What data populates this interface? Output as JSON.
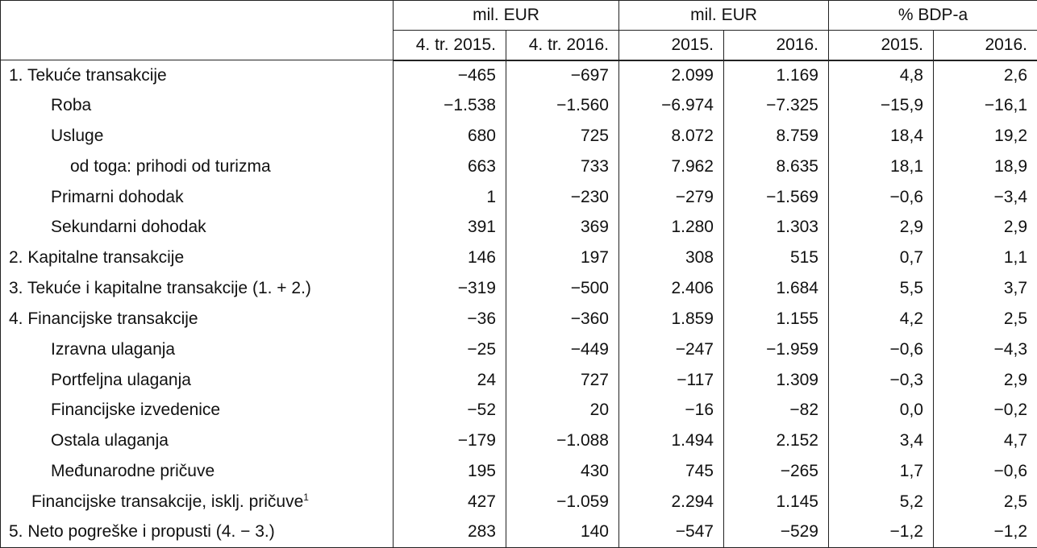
{
  "table": {
    "groups": [
      {
        "label": "mil. EUR",
        "span": 2
      },
      {
        "label": "mil. EUR",
        "span": 2
      },
      {
        "label": "% BDP-a",
        "span": 2
      }
    ],
    "columns": [
      "4. tr. 2015.",
      "4. tr. 2016.",
      "2015.",
      "2016.",
      "2015.",
      "2016."
    ],
    "rows": [
      {
        "label": "1. Tekuće transakcije",
        "bold": true,
        "indent": 0,
        "values": [
          "−465",
          "−697",
          "2.099",
          "1.169",
          "4,8",
          "2,6"
        ]
      },
      {
        "label": "Roba",
        "bold": false,
        "indent": 2,
        "values": [
          "−1.538",
          "−1.560",
          "−6.974",
          "−7.325",
          "−15,9",
          "−16,1"
        ]
      },
      {
        "label": "Usluge",
        "bold": false,
        "indent": 2,
        "values": [
          "680",
          "725",
          "8.072",
          "8.759",
          "18,4",
          "19,2"
        ]
      },
      {
        "label": "od toga: prihodi od turizma",
        "bold": false,
        "indent": 3,
        "values": [
          "663",
          "733",
          "7.962",
          "8.635",
          "18,1",
          "18,9"
        ]
      },
      {
        "label": "Primarni dohodak",
        "bold": false,
        "indent": 2,
        "values": [
          "1",
          "−230",
          "−279",
          "−1.569",
          "−0,6",
          "−3,4"
        ]
      },
      {
        "label": "Sekundarni dohodak",
        "bold": false,
        "indent": 2,
        "values": [
          "391",
          "369",
          "1.280",
          "1.303",
          "2,9",
          "2,9"
        ]
      },
      {
        "label": "2. Kapitalne transakcije",
        "bold": true,
        "indent": 0,
        "values": [
          "146",
          "197",
          "308",
          "515",
          "0,7",
          "1,1"
        ]
      },
      {
        "label": "3. Tekuće i kapitalne transakcije (1. + 2.)",
        "bold": true,
        "indent": 0,
        "values": [
          "−319",
          "−500",
          "2.406",
          "1.684",
          "5,5",
          "3,7"
        ]
      },
      {
        "label": "4. Financijske transakcije",
        "bold": true,
        "indent": 0,
        "values": [
          "−36",
          "−360",
          "1.859",
          "1.155",
          "4,2",
          "2,5"
        ]
      },
      {
        "label": "Izravna ulaganja",
        "bold": false,
        "indent": 2,
        "values": [
          "−25",
          "−449",
          "−247",
          "−1.959",
          "−0,6",
          "−4,3"
        ]
      },
      {
        "label": "Portfeljna ulaganja",
        "bold": false,
        "indent": 2,
        "values": [
          "24",
          "727",
          "−117",
          "1.309",
          "−0,3",
          "2,9"
        ]
      },
      {
        "label": "Financijske izvedenice",
        "bold": false,
        "indent": 2,
        "values": [
          "−52",
          "20",
          "−16",
          "−82",
          "0,0",
          "−0,2"
        ]
      },
      {
        "label": "Ostala ulaganja",
        "bold": false,
        "indent": 2,
        "values": [
          "−179",
          "−1.088",
          "1.494",
          "2.152",
          "3,4",
          "4,7"
        ]
      },
      {
        "label": "Međunarodne pričuve",
        "bold": false,
        "indent": 2,
        "values": [
          "195",
          "430",
          "745",
          "−265",
          "1,7",
          "−0,6"
        ]
      },
      {
        "label": "Financijske transakcije, isklj. pričuve",
        "note": "1",
        "bold": false,
        "indent": 1,
        "values": [
          "427",
          "−1.059",
          "2.294",
          "1.145",
          "5,2",
          "2,5"
        ]
      },
      {
        "label": "5. Neto pogreške i propusti (4. − 3.)",
        "bold": true,
        "indent": 0,
        "values": [
          "283",
          "140",
          "−547",
          "−529",
          "−1,2",
          "−1,2"
        ]
      }
    ]
  }
}
